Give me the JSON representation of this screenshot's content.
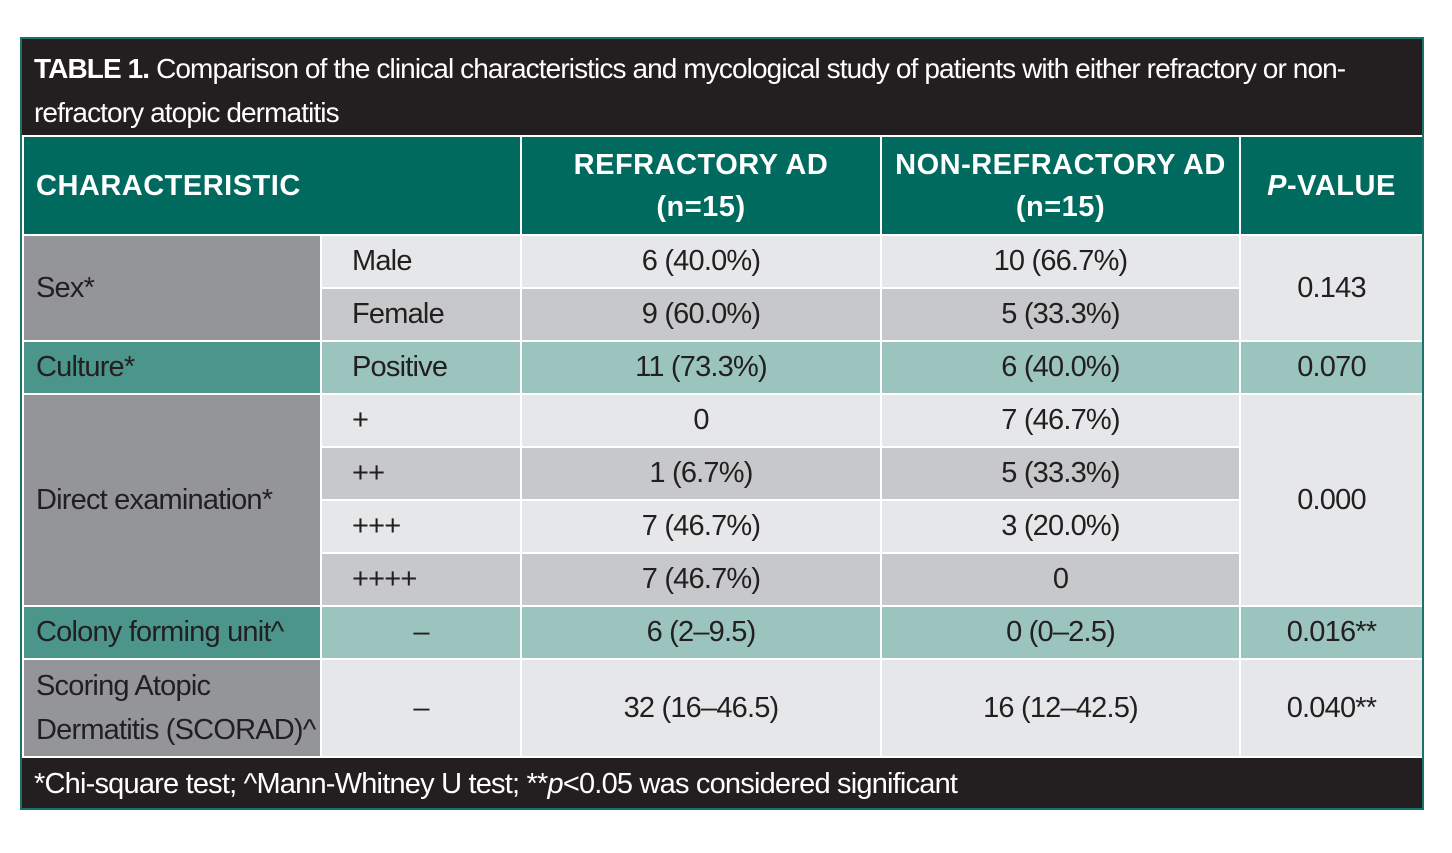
{
  "title": {
    "lead": "TABLE 1.",
    "text": " Comparison of the clinical characteristics and mycological study of patients with either refractory or non-refractory atopic dermatitis"
  },
  "header": {
    "characteristic": "CHARACTERISTIC",
    "refractory_line1": "REFRACTORY AD",
    "refractory_line2": "(n=15)",
    "nonrefractory_line1": "NON-REFRACTORY AD",
    "nonrefractory_line2": "(n=15)",
    "pvalue_italic": "P",
    "pvalue_rest": "-VALUE"
  },
  "rows": {
    "sex": {
      "label": "Sex*",
      "male": {
        "sub": "Male",
        "refractory": "6 (40.0%)",
        "nonrefractory": "10 (66.7%)"
      },
      "female": {
        "sub": "Female",
        "refractory": "9 (60.0%)",
        "nonrefractory": "5 (33.3%)"
      },
      "p": "0.143"
    },
    "culture": {
      "label": "Culture*",
      "sub": "Positive",
      "refractory": "11 (73.3%)",
      "nonrefractory": "6 (40.0%)",
      "p": "0.070"
    },
    "direct": {
      "label": "Direct examination*",
      "items": [
        {
          "sub": "+",
          "refractory": "0",
          "nonrefractory": "7 (46.7%)"
        },
        {
          "sub": "++",
          "refractory": "1 (6.7%)",
          "nonrefractory": "5 (33.3%)"
        },
        {
          "sub": "+++",
          "refractory": "7 (46.7%)",
          "nonrefractory": "3 (20.0%)"
        },
        {
          "sub": "++++",
          "refractory": "7 (46.7%)",
          "nonrefractory": "0"
        }
      ],
      "p": "0.000"
    },
    "cfu": {
      "label": "Colony forming unit^",
      "sub": "–",
      "refractory": "6 (2–9.5)",
      "nonrefractory": "0 (0–2.5)",
      "p": "0.016**"
    },
    "scorad": {
      "label_line1": "Scoring Atopic",
      "label_line2": "Dermatitis (SCORAD)^",
      "sub": "–",
      "refractory": "32 (16–46.5)",
      "nonrefractory": "16 (12–42.5)",
      "p": "0.040**"
    }
  },
  "footer": {
    "part1": "*Chi-square test; ^Mann-Whitney U test; **",
    "p_italic": "p",
    "part2": "<0.05 was considered significant"
  }
}
